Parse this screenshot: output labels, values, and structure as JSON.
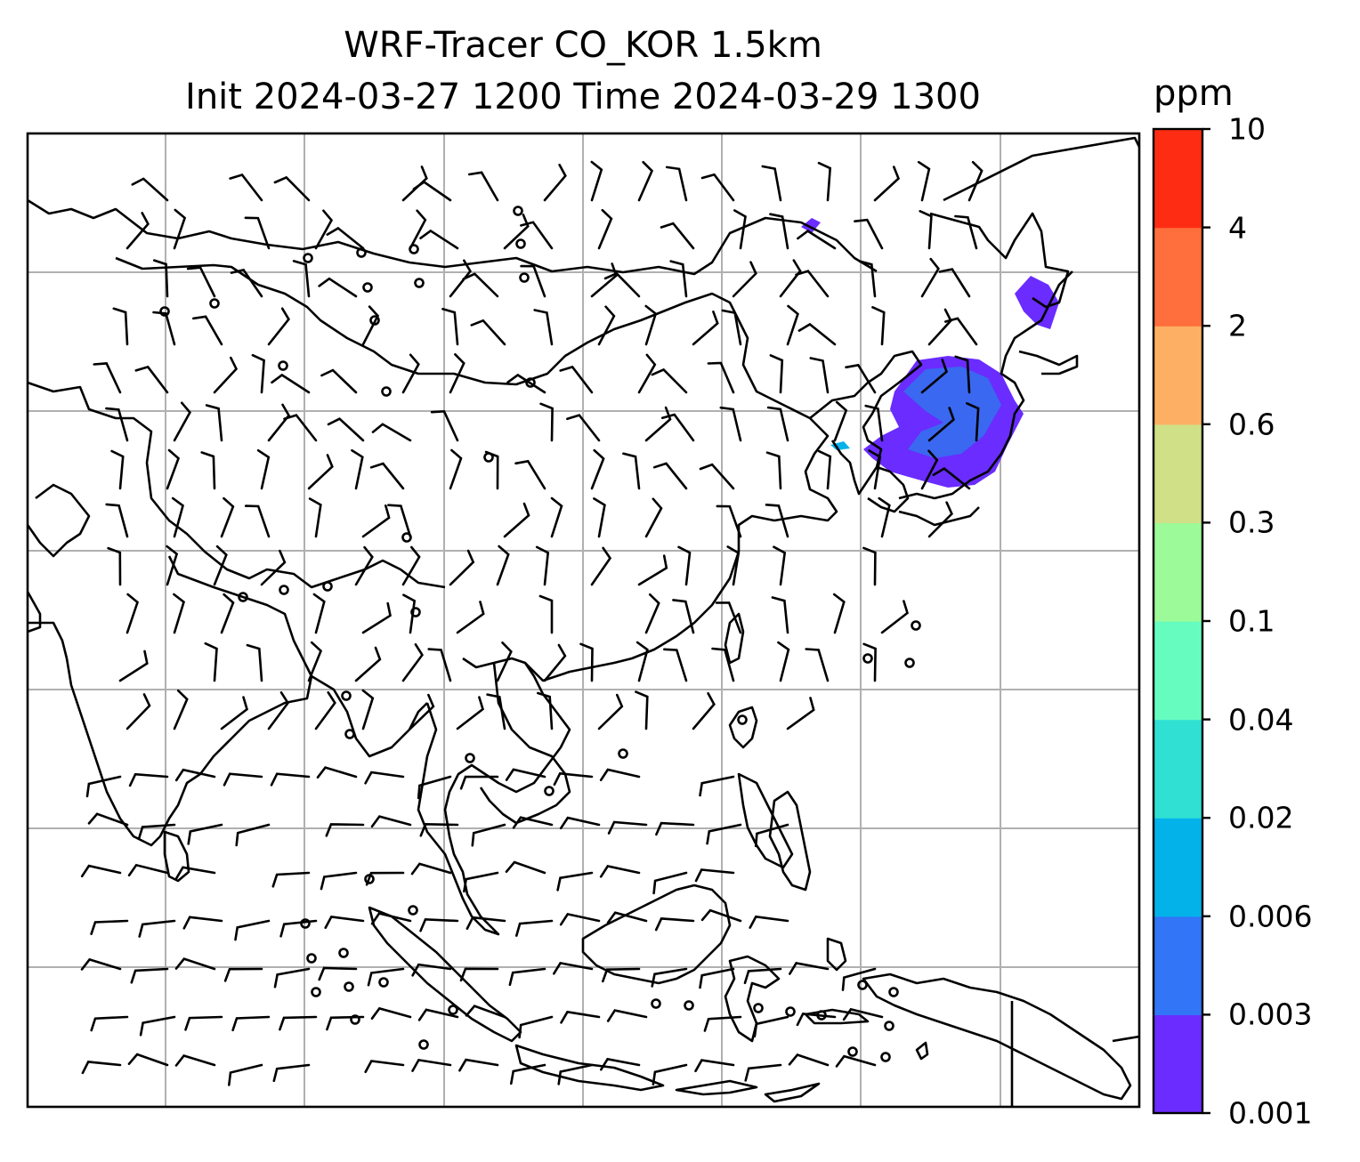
{
  "title": {
    "line1": "WRF-Tracer CO_KOR 1.5km",
    "line2": "Init 2024-03-27 1200 Time 2024-03-29 1300"
  },
  "colorbar": {
    "unit": "ppm",
    "levels": [
      "0.001",
      "0.003",
      "0.006",
      "0.02",
      "0.04",
      "0.1",
      "0.3",
      "0.6",
      "2",
      "4",
      "10"
    ],
    "colors": [
      "#6a2cff",
      "#3275f7",
      "#04b2ea",
      "#2fe0d3",
      "#66fcc0",
      "#9cfa99",
      "#cfe086",
      "#fdb063",
      "#ff6e3d",
      "#ff2c14"
    ]
  },
  "map": {
    "grid": "on",
    "coastline_color": "#000000",
    "plume_colors": [
      "#6a2cff",
      "#3a68f0",
      "#04b2ea"
    ]
  }
}
